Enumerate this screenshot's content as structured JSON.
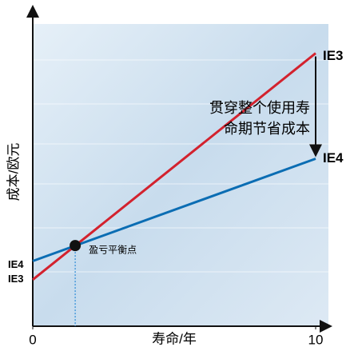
{
  "chart_data": {
    "type": "line",
    "y_label": "成本/欧元",
    "x_label": "寿命/年",
    "x": [
      0,
      10
    ],
    "xlim": [
      0,
      10
    ],
    "xticks": [
      0,
      10
    ],
    "ylim": [
      0,
      100
    ],
    "series": [
      {
        "name": "IE3",
        "color": "#d3222e",
        "values": [
          15,
          88
        ]
      },
      {
        "name": "IE4",
        "color": "#0b6db3",
        "values": [
          21,
          54
        ]
      }
    ],
    "break_even": {
      "label": "盈亏平衡点",
      "x": 1.5,
      "y": 26
    },
    "savings_note": [
      "贯穿整个使用寿",
      "命期节省成本"
    ]
  }
}
